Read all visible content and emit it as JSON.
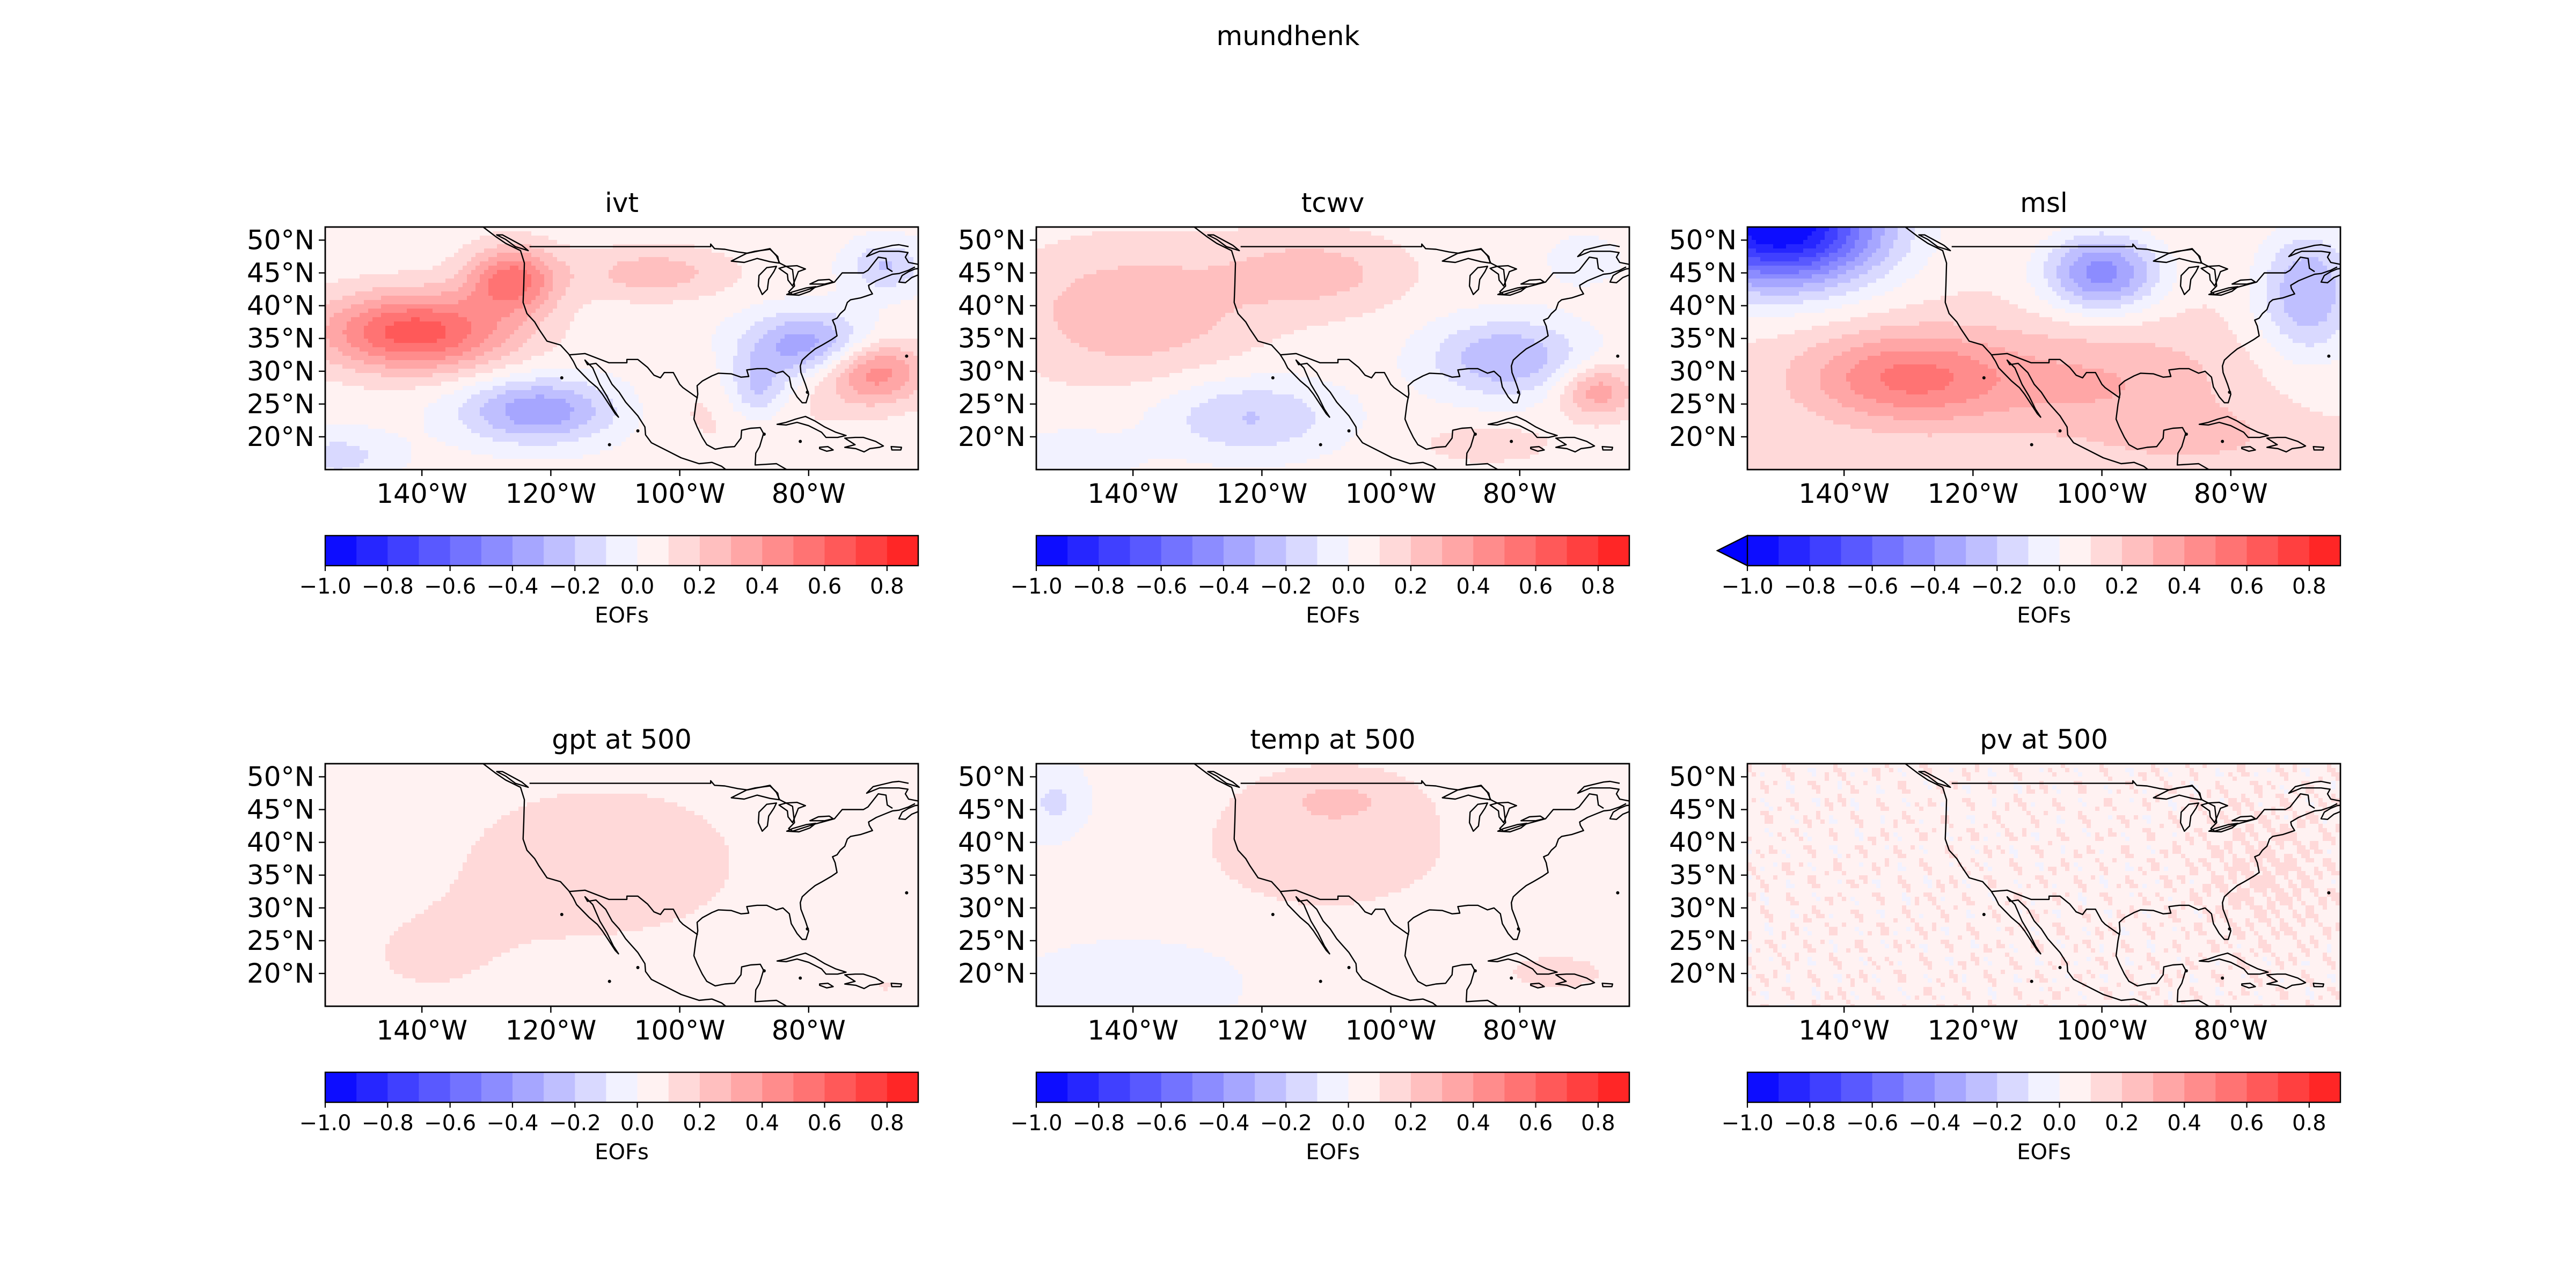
{
  "figure": {
    "title": "mundhenk"
  },
  "map": {
    "lat_ticks": [
      "50°N",
      "45°N",
      "40°N",
      "35°N",
      "30°N",
      "25°N",
      "20°N"
    ],
    "lon_ticks": [
      "140°W",
      "120°W",
      "100°W",
      "80°W"
    ],
    "lat_range": [
      15,
      52
    ],
    "lon_range": [
      -155,
      -63
    ]
  },
  "colorbar": {
    "ticks": [
      "−1.0",
      "−0.8",
      "−0.6",
      "−0.4",
      "−0.2",
      "0.0",
      "0.2",
      "0.4",
      "0.6",
      "0.8"
    ],
    "label": "EOFs",
    "range": [
      -1.0,
      0.9
    ],
    "levels": 19,
    "cmap": [
      "#0000ff",
      "#ffffff",
      "#ff0000"
    ]
  },
  "panels": [
    {
      "title": "ivt",
      "extend_min": false
    },
    {
      "title": "tcwv",
      "extend_min": false
    },
    {
      "title": "msl",
      "extend_min": true
    },
    {
      "title": "gpt at 500",
      "extend_min": false
    },
    {
      "title": "temp at 500",
      "extend_min": false
    },
    {
      "title": "pv at 500",
      "extend_min": false
    }
  ]
}
